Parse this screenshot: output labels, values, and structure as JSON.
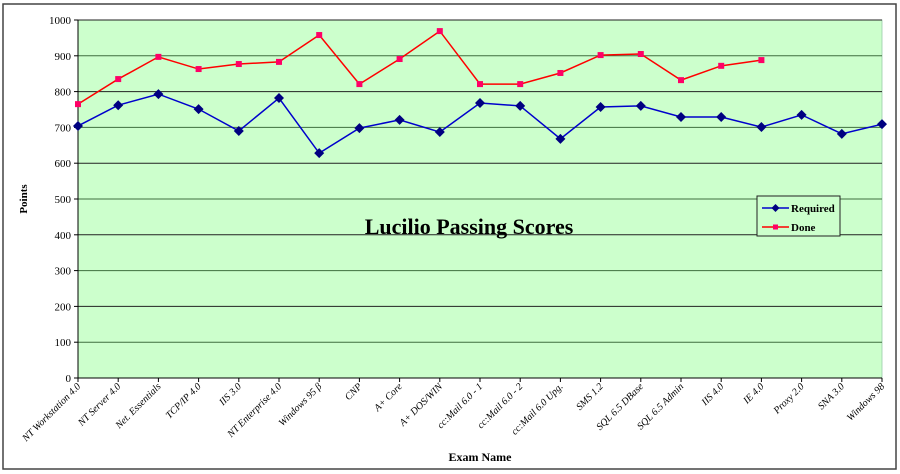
{
  "chart_data": {
    "type": "line",
    "title": "Lucilio Passing Scores",
    "xlabel": "Exam Name",
    "ylabel": "Points",
    "ylim": [
      0,
      1000
    ],
    "yticks": [
      0,
      100,
      200,
      300,
      400,
      500,
      600,
      700,
      800,
      900,
      1000
    ],
    "grid": true,
    "legend": "right",
    "plot_background": "#ccffcc",
    "categories": [
      "NT Workstation 4.0",
      "NT Server 4.0",
      "Net. Essentials",
      "TCP/IP 4.0",
      "IIS 3.0",
      "NT Enterprise 4.0",
      "Windows 95 β",
      "CNP",
      "A+ Core",
      "A+ DOS/WIN",
      "cc:Mail 6.0 - 1",
      "cc:Mail 6.0 - 2",
      "cc:Mail 6.0 Upg.",
      "SMS 1.2",
      "SQL 6.5 DBase",
      "SQL 6.5 Admin",
      "IIS 4.0",
      "IE 4.0",
      "Proxy 2.0",
      "SNA 3.0",
      "Windows 98"
    ],
    "series": [
      {
        "name": "Required",
        "color": "#0000cc",
        "marker": "diamond",
        "values": [
          704,
          762,
          793,
          751,
          690,
          782,
          628,
          698,
          721,
          687,
          768,
          760,
          668,
          757,
          760,
          729,
          729,
          701,
          735,
          682,
          709
        ]
      },
      {
        "name": "Done",
        "color": "#ff0000",
        "marker": "square",
        "values": [
          765,
          835,
          897,
          863,
          877,
          883,
          958,
          821,
          891,
          969,
          821,
          821,
          852,
          902,
          905,
          832,
          872,
          888,
          null,
          null,
          null
        ]
      }
    ]
  }
}
